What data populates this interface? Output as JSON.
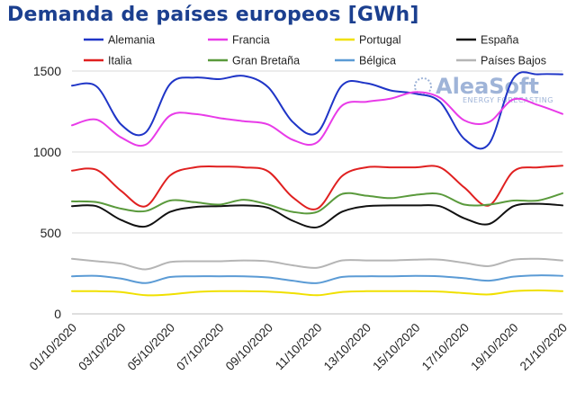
{
  "chart_data": {
    "type": "line",
    "title": "Demanda de países europeos [GWh]",
    "ylim": [
      0,
      1500
    ],
    "yticks": [
      0,
      500,
      1000,
      1500
    ],
    "grid": "horizontal",
    "legend_position": "top",
    "x": [
      "01/10/2020",
      "02/10/2020",
      "03/10/2020",
      "04/10/2020",
      "05/10/2020",
      "06/10/2020",
      "07/10/2020",
      "08/10/2020",
      "09/10/2020",
      "10/10/2020",
      "11/10/2020",
      "12/10/2020",
      "13/10/2020",
      "14/10/2020",
      "15/10/2020",
      "16/10/2020",
      "17/10/2020",
      "18/10/2020",
      "19/10/2020",
      "20/10/2020",
      "21/10/2020"
    ],
    "xtick_labels": [
      "01/10/2020",
      "03/10/2020",
      "05/10/2020",
      "07/10/2020",
      "09/10/2020",
      "11/10/2020",
      "13/10/2020",
      "15/10/2020",
      "17/10/2020",
      "19/10/2020",
      "21/10/2020"
    ],
    "series": [
      {
        "name": "Alemania",
        "color": "#1f35c7",
        "values": [
          1410,
          1405,
          1170,
          1120,
          1420,
          1460,
          1450,
          1470,
          1400,
          1185,
          1120,
          1410,
          1425,
          1380,
          1360,
          1310,
          1080,
          1050,
          1455,
          1480,
          1480
        ]
      },
      {
        "name": "Francia",
        "color": "#e83be8",
        "values": [
          1165,
          1200,
          1090,
          1045,
          1225,
          1235,
          1210,
          1190,
          1170,
          1075,
          1060,
          1285,
          1310,
          1330,
          1370,
          1335,
          1195,
          1185,
          1325,
          1290,
          1235
        ]
      },
      {
        "name": "Portugal",
        "color": "#f0e000",
        "values": [
          140,
          140,
          135,
          115,
          120,
          135,
          140,
          140,
          138,
          128,
          115,
          135,
          140,
          140,
          140,
          138,
          128,
          120,
          140,
          145,
          140
        ]
      },
      {
        "name": "España",
        "color": "#111111",
        "values": [
          665,
          665,
          580,
          540,
          630,
          660,
          665,
          670,
          655,
          575,
          535,
          630,
          665,
          670,
          670,
          665,
          590,
          555,
          665,
          680,
          670
        ]
      },
      {
        "name": "Italia",
        "color": "#e02020",
        "values": [
          885,
          890,
          760,
          665,
          855,
          905,
          910,
          905,
          880,
          720,
          650,
          850,
          905,
          905,
          905,
          905,
          780,
          670,
          880,
          905,
          915
        ]
      },
      {
        "name": "Gran Bretaña",
        "color": "#5a9a3c",
        "values": [
          695,
          690,
          650,
          635,
          700,
          690,
          675,
          705,
          675,
          630,
          630,
          740,
          730,
          715,
          735,
          740,
          675,
          675,
          700,
          700,
          745
        ]
      },
      {
        "name": "Bélgica",
        "color": "#5b9bd5",
        "values": [
          232,
          235,
          218,
          190,
          228,
          232,
          232,
          232,
          225,
          205,
          190,
          228,
          232,
          232,
          235,
          232,
          220,
          205,
          230,
          238,
          235
        ]
      },
      {
        "name": "Países Bajos",
        "color": "#b5b5b5",
        "values": [
          340,
          325,
          310,
          275,
          320,
          325,
          325,
          330,
          325,
          300,
          285,
          330,
          330,
          330,
          335,
          335,
          315,
          295,
          335,
          340,
          330
        ]
      }
    ],
    "watermark": {
      "main": "AleaSoft",
      "sub": "ENERGY FORECASTING"
    }
  }
}
